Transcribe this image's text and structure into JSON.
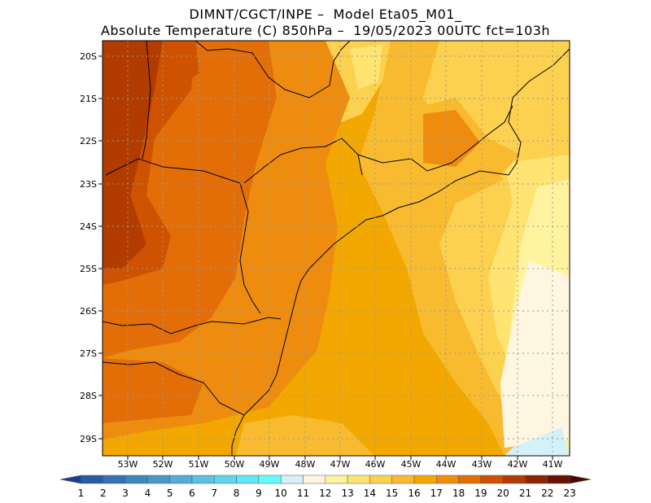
{
  "header": {
    "line1": "DIMNT/CGCT/INPE –  Model Eta05_M01_",
    "line2": "Absolute Temperature (C) 850hPa –  19/05/2023 00UTC fct=103h"
  },
  "map": {
    "lon_ticks": [
      "53W",
      "52W",
      "51W",
      "50W",
      "49W",
      "48W",
      "47W",
      "46W",
      "45W",
      "44W",
      "43W",
      "42W",
      "41W"
    ],
    "lat_ticks": [
      "20S",
      "21S",
      "22S",
      "23S",
      "24S",
      "25S",
      "26S",
      "27S",
      "28S",
      "29S"
    ],
    "lon_range": [
      -53.8,
      -40.6
    ],
    "lat_range": [
      -19.8,
      -29.4
    ],
    "grid": true
  },
  "colorbar": {
    "labels": [
      "1",
      "2",
      "3",
      "4",
      "5",
      "6",
      "7",
      "8",
      "9",
      "10",
      "11",
      "12",
      "13",
      "14",
      "15",
      "16",
      "17",
      "18",
      "19",
      "20",
      "21",
      "22",
      "23"
    ],
    "colors": [
      "#1f3d8f",
      "#2a5aa2",
      "#3572b0",
      "#3f86bc",
      "#4a98c8",
      "#55acd6",
      "#5cc2e2",
      "#5fd6ec",
      "#62e8f2",
      "#66fbfb",
      "#d4f1f9",
      "#fff6e2",
      "#fff3a0",
      "#ffe472",
      "#fdd150",
      "#f8bb30",
      "#f2a800",
      "#ee8c10",
      "#e36e08",
      "#cf5200",
      "#b23b00",
      "#8f2500",
      "#661300",
      "#4e0700"
    ]
  }
}
